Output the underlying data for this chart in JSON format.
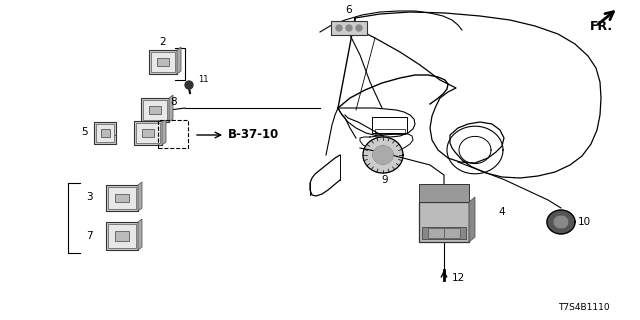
{
  "bg_color": "#ffffff",
  "diagram_code": "T7S4B1110",
  "fr_label": "FR.",
  "b_ref": "B-37-10",
  "fig_w": 6.4,
  "fig_h": 3.2,
  "dpi": 100
}
